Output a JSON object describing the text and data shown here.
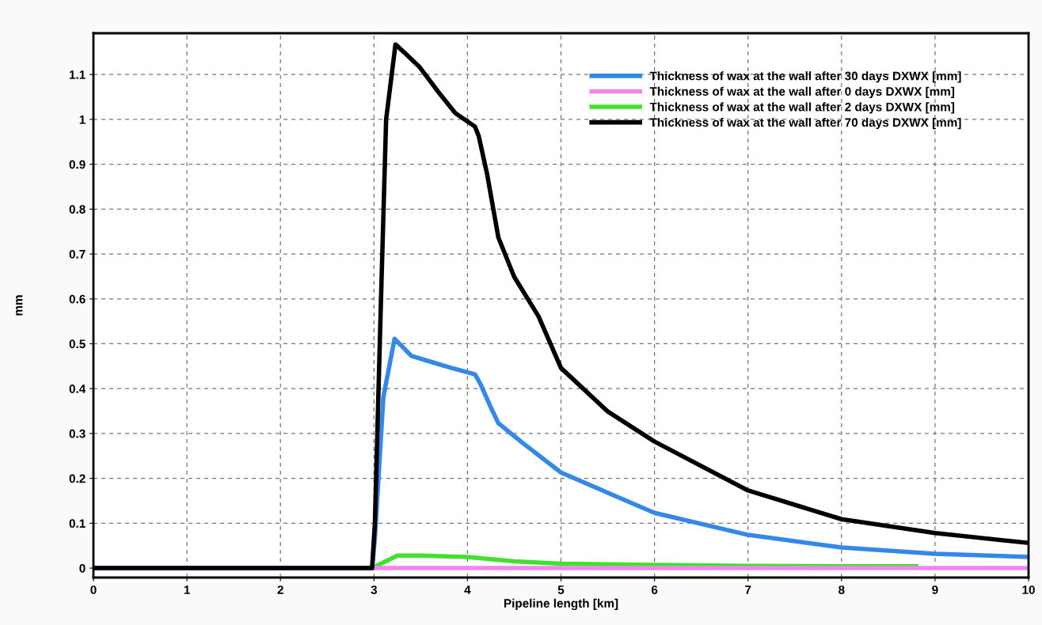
{
  "chart_data": {
    "type": "line",
    "xlabel": "Pipeline length [km]",
    "ylabel": "mm",
    "xlim": [
      0,
      10
    ],
    "ylim": [
      -0.021,
      1.192
    ],
    "xticks": [
      0,
      1,
      2,
      3,
      4,
      5,
      6,
      7,
      8,
      9,
      10
    ],
    "yticks": [
      0,
      0.1,
      0.2,
      0.3,
      0.4,
      0.5,
      0.6,
      0.7,
      0.8,
      0.9,
      1,
      1.1
    ],
    "grid": true,
    "legend": "top right",
    "marker": "none",
    "line_style": "solid",
    "series": [
      {
        "name": "Thickness of wax at the wall after 2 days DXWX [mm]",
        "color": "#44e030",
        "x": [
          0,
          2.98,
          3.25,
          3.5,
          4.0,
          4.5,
          5,
          6,
          7,
          8,
          8.8
        ],
        "values": [
          0,
          0,
          0.028,
          0.028,
          0.025,
          0.015,
          0.01,
          0.007,
          0.005,
          0.004,
          0.004
        ]
      },
      {
        "name": "Thickness of wax at the wall after 0 days DXWX [mm]",
        "color": "#ee88ee",
        "x": [
          0,
          10
        ],
        "values": [
          0,
          0
        ]
      },
      {
        "name": "Thickness of wax at the wall after 30 days DXWX [mm]",
        "color": "#3388e8",
        "x": [
          0,
          2.98,
          3.01,
          3.1,
          3.22,
          3.4,
          3.62,
          3.83,
          4.08,
          4.14,
          4.25,
          4.33,
          4.59,
          5,
          6,
          7,
          8,
          9,
          10
        ],
        "values": [
          0,
          0,
          0.067,
          0.38,
          0.511,
          0.473,
          0.459,
          0.446,
          0.432,
          0.41,
          0.358,
          0.323,
          0.279,
          0.213,
          0.123,
          0.074,
          0.046,
          0.032,
          0.025
        ]
      },
      {
        "name": "Thickness of wax at the wall after 70 days DXWX [mm]",
        "color": "#000000",
        "x": [
          0,
          2.98,
          3.01,
          3.07,
          3.13,
          3.23,
          3.32,
          3.49,
          3.7,
          3.87,
          4.08,
          4.12,
          4.21,
          4.33,
          4.5,
          4.76,
          5,
          5.5,
          6,
          7,
          8,
          9,
          10
        ],
        "values": [
          0,
          0,
          0.1,
          0.56,
          1.0,
          1.167,
          1.15,
          1.116,
          1.058,
          1.014,
          0.984,
          0.963,
          0.878,
          0.737,
          0.649,
          0.561,
          0.446,
          0.349,
          0.282,
          0.173,
          0.109,
          0.078,
          0.056
        ]
      }
    ]
  }
}
